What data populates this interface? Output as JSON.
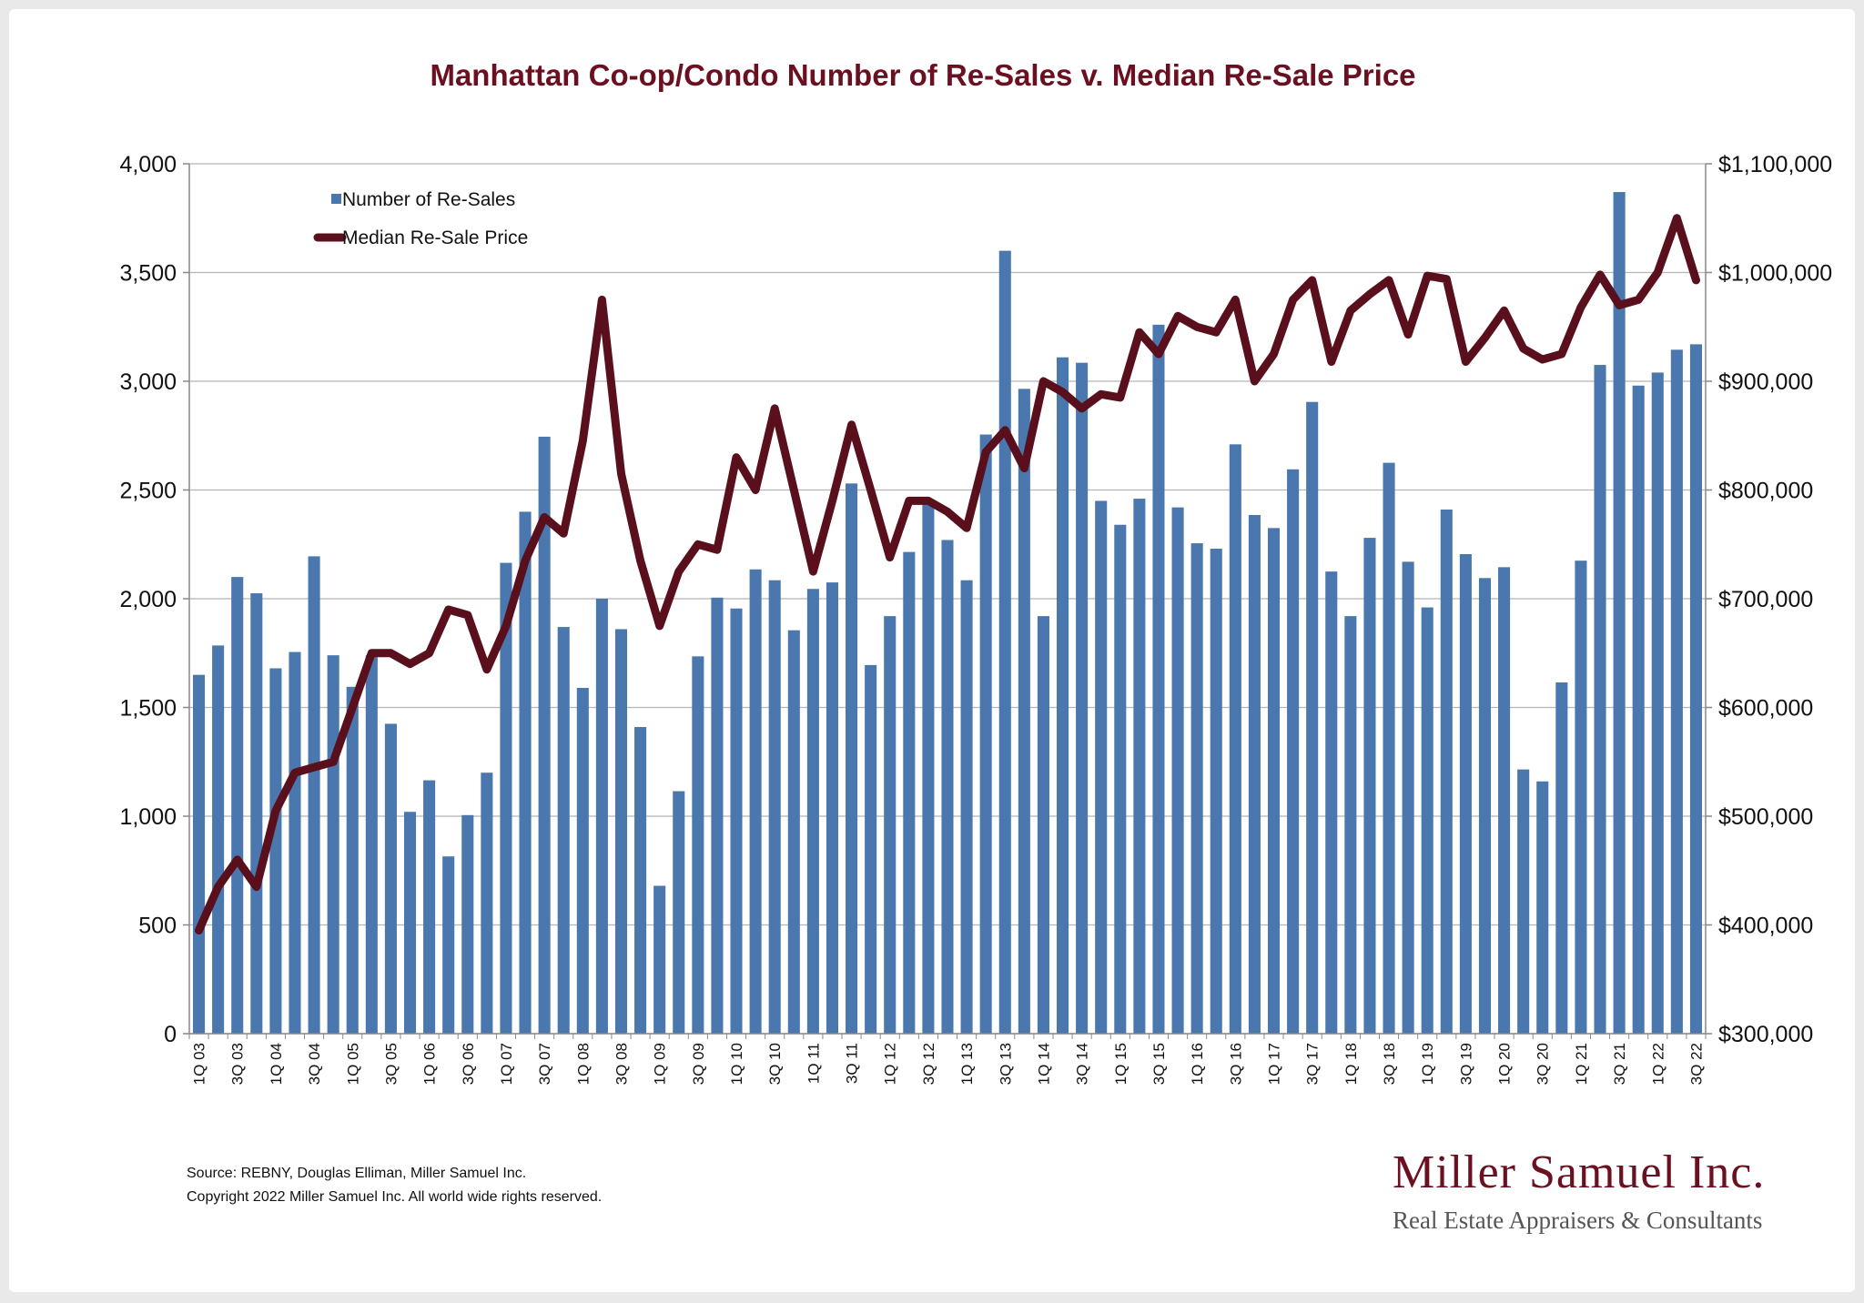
{
  "colors": {
    "bar": "#4a78ae",
    "line": "#5a0f1c",
    "title": "#6b1020",
    "grid": "#b5b5b5",
    "axis": "#888888"
  },
  "chart_data": {
    "type": "bar",
    "title": "Manhattan Co-op/Condo Number of Re-Sales v. Median Re-Sale Price",
    "legend_placement": "top-left",
    "grid": true,
    "categories": [
      "1Q 03",
      "2Q 03",
      "3Q 03",
      "4Q 03",
      "1Q 04",
      "2Q 04",
      "3Q 04",
      "4Q 04",
      "1Q 05",
      "2Q 05",
      "3Q 05",
      "4Q 05",
      "1Q 06",
      "2Q 06",
      "3Q 06",
      "4Q 06",
      "1Q 07",
      "2Q 07",
      "3Q 07",
      "4Q 07",
      "1Q 08",
      "2Q 08",
      "3Q 08",
      "4Q 08",
      "1Q 09",
      "2Q 09",
      "3Q 09",
      "4Q 09",
      "1Q 10",
      "2Q 10",
      "3Q 10",
      "4Q 10",
      "1Q 11",
      "2Q 11",
      "3Q 11",
      "4Q 11",
      "1Q 12",
      "2Q 12",
      "3Q 12",
      "4Q 12",
      "1Q 13",
      "2Q 13",
      "3Q 13",
      "4Q 13",
      "1Q 14",
      "2Q 14",
      "3Q 14",
      "4Q 14",
      "1Q 15",
      "2Q 15",
      "3Q 15",
      "4Q 15",
      "1Q 16",
      "2Q 16",
      "3Q 16",
      "4Q 16",
      "1Q 17",
      "2Q 17",
      "3Q 17",
      "4Q 17",
      "1Q 18",
      "2Q 18",
      "3Q 18",
      "4Q 18",
      "1Q 19",
      "2Q 19",
      "3Q 19",
      "4Q 19",
      "1Q 20",
      "2Q 20",
      "3Q 20",
      "4Q 20",
      "1Q 21",
      "2Q 21",
      "3Q 21",
      "4Q 21",
      "1Q 22",
      "2Q 22",
      "3Q 22"
    ],
    "series": [
      {
        "name": "Number of Re-Sales",
        "type": "bar",
        "axis": "left",
        "values": [
          1650,
          1785,
          2100,
          2025,
          1680,
          1755,
          2195,
          1740,
          1595,
          1740,
          1425,
          1020,
          1165,
          815,
          1005,
          1200,
          2165,
          2400,
          2745,
          1870,
          1590,
          2000,
          1860,
          1410,
          680,
          1115,
          1735,
          2005,
          1955,
          2135,
          2085,
          1855,
          2045,
          2075,
          2530,
          1695,
          1920,
          2215,
          2440,
          2270,
          2085,
          2755,
          3600,
          2965,
          1920,
          3110,
          3085,
          2450,
          2340,
          2460,
          3260,
          2420,
          2255,
          2230,
          2710,
          2385,
          2325,
          2595,
          2905,
          2125,
          1920,
          2280,
          2625,
          2170,
          1960,
          2410,
          2205,
          2095,
          2145,
          1215,
          1160,
          1615,
          2175,
          3075,
          3870,
          2980,
          3040,
          3145,
          3170
        ]
      },
      {
        "name": "Median Re-Sale Price",
        "type": "line",
        "axis": "right",
        "values": [
          395000,
          435000,
          460000,
          435000,
          505000,
          540000,
          545000,
          550000,
          600000,
          650000,
          650000,
          640000,
          650000,
          690000,
          685000,
          635000,
          675000,
          735000,
          775000,
          760000,
          845000,
          975000,
          815000,
          735000,
          675000,
          725000,
          750000,
          745000,
          830000,
          800000,
          875000,
          800000,
          725000,
          790000,
          860000,
          800000,
          738000,
          790000,
          790000,
          780000,
          765000,
          835000,
          855000,
          820000,
          900000,
          890000,
          875000,
          888000,
          885000,
          945000,
          925000,
          960000,
          950000,
          945000,
          975000,
          900000,
          925000,
          975000,
          993000,
          918000,
          965000,
          980000,
          993000,
          943000,
          997000,
          994000,
          918000,
          940000,
          965000,
          930000,
          920000,
          925000,
          968000,
          998000,
          970000,
          975000,
          1000000,
          1050000,
          993000
        ]
      }
    ],
    "y_left": {
      "min": 0,
      "max": 4000,
      "ticks": [
        "0",
        "500",
        "1,000",
        "1,500",
        "2,000",
        "2,500",
        "3,000",
        "3,500",
        "4,000"
      ]
    },
    "y_right": {
      "min": 300000,
      "max": 1100000,
      "ticks": [
        "$300,000",
        "$400,000",
        "$500,000",
        "$600,000",
        "$700,000",
        "$800,000",
        "$900,000",
        "$1,000,000",
        "$1,100,000"
      ]
    },
    "x_tick_labels": [
      "1Q 03",
      "3Q 03",
      "1Q 04",
      "3Q 04",
      "1Q 05",
      "3Q 05",
      "1Q 06",
      "3Q 06",
      "1Q 07",
      "3Q 07",
      "1Q 08",
      "3Q 08",
      "1Q 09",
      "3Q 09",
      "1Q 10",
      "3Q 10",
      "1Q 11",
      "3Q 11",
      "1Q 12",
      "3Q 12",
      "1Q 13",
      "3Q 13",
      "1Q 14",
      "3Q 14",
      "1Q 15",
      "3Q 15",
      "1Q 16",
      "3Q 16",
      "1Q 17",
      "3Q 17",
      "1Q 18",
      "3Q 18",
      "1Q 19",
      "3Q 19",
      "1Q 20",
      "3Q 20",
      "1Q 21",
      "3Q 21",
      "1Q 22",
      "3Q 22"
    ]
  },
  "footer": {
    "source": "Source: REBNY, Douglas Elliman, Miller Samuel Inc.",
    "copyright": "Copyright 2022 Miller Samuel Inc.  All world wide rights reserved."
  },
  "brand": {
    "name": "Miller Samuel Inc.",
    "tagline": "Real Estate Appraisers & Consultants"
  }
}
